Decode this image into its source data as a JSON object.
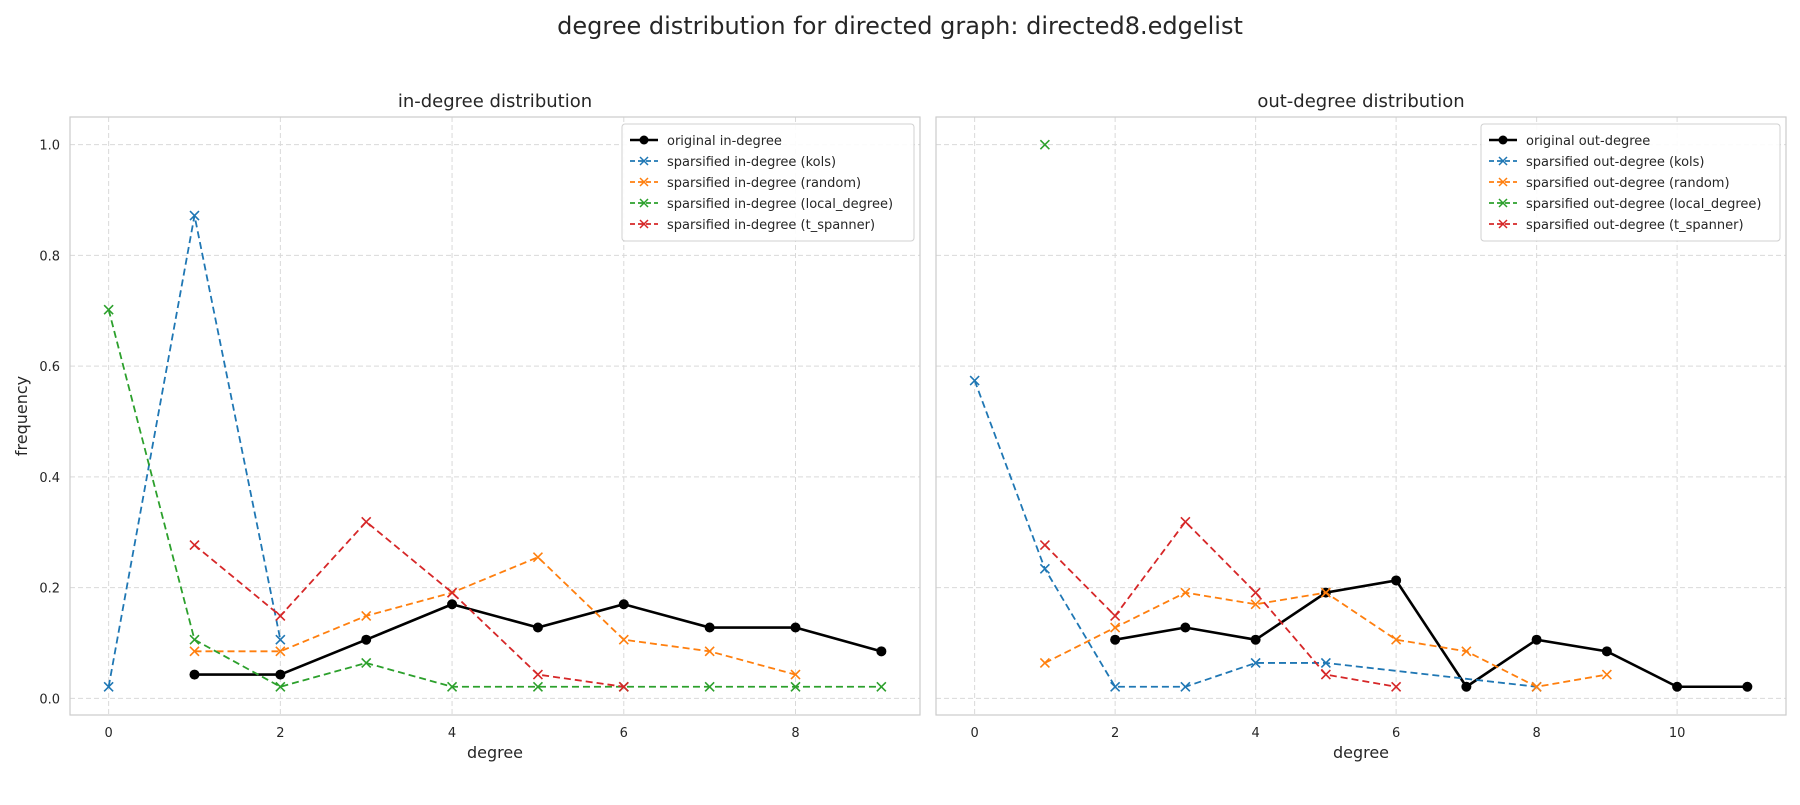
{
  "figure": {
    "title": "degree distribution for directed graph: directed8.edgelist"
  },
  "chart_data": [
    {
      "type": "line",
      "title": "in-degree distribution",
      "xlabel": "degree",
      "ylabel": "frequency",
      "xlim": [
        -0.45,
        9.45
      ],
      "ylim": [
        -0.03,
        1.05
      ],
      "xticks": [
        0,
        2,
        4,
        6,
        8
      ],
      "yticks": [
        0.0,
        0.2,
        0.4,
        0.6,
        0.8,
        1.0
      ],
      "grid": true,
      "legend_position": "top-right",
      "series": [
        {
          "name": "original in-degree",
          "color": "#000000",
          "style": "solid",
          "marker": "circle",
          "x": [
            1,
            2,
            3,
            4,
            5,
            6,
            7,
            8,
            9
          ],
          "y": [
            0.043,
            0.043,
            0.106,
            0.17,
            0.128,
            0.17,
            0.128,
            0.128,
            0.085
          ]
        },
        {
          "name": "sparsified in-degree (kols)",
          "color": "#1f77b4",
          "style": "dashed",
          "marker": "x",
          "x": [
            0,
            1,
            2
          ],
          "y": [
            0.021,
            0.872,
            0.106
          ]
        },
        {
          "name": "sparsified in-degree (random)",
          "color": "#ff7f0e",
          "style": "dashed",
          "marker": "x",
          "x": [
            1,
            2,
            3,
            4,
            5,
            6,
            7,
            8
          ],
          "y": [
            0.085,
            0.085,
            0.149,
            0.191,
            0.255,
            0.106,
            0.085,
            0.043
          ]
        },
        {
          "name": "sparsified in-degree (local_degree)",
          "color": "#2ca02c",
          "style": "dashed",
          "marker": "x",
          "x": [
            0,
            1,
            2,
            3,
            4,
            5,
            6,
            7,
            8,
            9
          ],
          "y": [
            0.702,
            0.106,
            0.021,
            0.064,
            0.021,
            0.021,
            0.021,
            0.021,
            0.021,
            0.021
          ]
        },
        {
          "name": "sparsified in-degree (t_spanner)",
          "color": "#d62728",
          "style": "dashed",
          "marker": "x",
          "x": [
            1,
            2,
            3,
            4,
            5,
            6
          ],
          "y": [
            0.277,
            0.149,
            0.319,
            0.191,
            0.043,
            0.021
          ]
        }
      ]
    },
    {
      "type": "line",
      "title": "out-degree distribution",
      "xlabel": "degree",
      "ylabel": "",
      "xlim": [
        -0.55,
        11.55
      ],
      "ylim": [
        -0.03,
        1.05
      ],
      "xticks": [
        0,
        2,
        4,
        6,
        8,
        10
      ],
      "yticks": [
        0.0,
        0.2,
        0.4,
        0.6,
        0.8,
        1.0
      ],
      "grid": true,
      "legend_position": "top-right",
      "series": [
        {
          "name": "original out-degree",
          "color": "#000000",
          "style": "solid",
          "marker": "circle",
          "x": [
            2,
            3,
            4,
            5,
            6,
            7,
            8,
            9,
            10,
            11
          ],
          "y": [
            0.106,
            0.128,
            0.106,
            0.191,
            0.213,
            0.021,
            0.106,
            0.085,
            0.021,
            0.021
          ]
        },
        {
          "name": "sparsified out-degree (kols)",
          "color": "#1f77b4",
          "style": "dashed",
          "marker": "x",
          "x": [
            0,
            1,
            2,
            3,
            4,
            5,
            8
          ],
          "y": [
            0.574,
            0.234,
            0.021,
            0.021,
            0.064,
            0.064,
            0.021
          ]
        },
        {
          "name": "sparsified out-degree (random)",
          "color": "#ff7f0e",
          "style": "dashed",
          "marker": "x",
          "x": [
            1,
            2,
            3,
            4,
            5,
            6,
            7,
            8,
            9
          ],
          "y": [
            0.064,
            0.128,
            0.191,
            0.17,
            0.191,
            0.106,
            0.085,
            0.021,
            0.043
          ]
        },
        {
          "name": "sparsified out-degree (local_degree)",
          "color": "#2ca02c",
          "style": "dashed",
          "marker": "x",
          "x": [
            1
          ],
          "y": [
            1.0
          ]
        },
        {
          "name": "sparsified out-degree (t_spanner)",
          "color": "#d62728",
          "style": "dashed",
          "marker": "x",
          "x": [
            1,
            2,
            3,
            4,
            5,
            6
          ],
          "y": [
            0.277,
            0.149,
            0.319,
            0.191,
            0.043,
            0.021
          ]
        }
      ]
    }
  ]
}
